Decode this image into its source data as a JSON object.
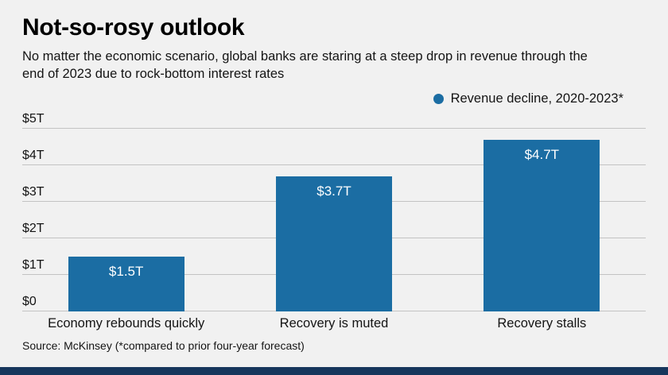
{
  "header": {
    "title": "Not-so-rosy outlook",
    "subtitle": "No matter the economic scenario, global banks are staring at a steep drop in revenue through the end of 2023 due to rock-bottom interest rates"
  },
  "chart_data": {
    "type": "bar",
    "title": "Not-so-rosy outlook",
    "legend": "Revenue decline, 2020-2023*",
    "legend_position": "top-right",
    "categories": [
      "Economy rebounds quickly",
      "Recovery is muted",
      "Recovery stalls"
    ],
    "values": [
      1.5,
      3.7,
      4.7
    ],
    "value_labels": [
      "$1.5T",
      "$3.7T",
      "$4.7T"
    ],
    "ylim": [
      0,
      5
    ],
    "yticks": [
      "$0",
      "$1T",
      "$2T",
      "$3T",
      "$4T",
      "$5T"
    ],
    "grid": true,
    "bar_color": "#1b6da3"
  },
  "footer": {
    "source": "Source: McKinsey (*compared to prior four-year forecast)"
  },
  "colors": {
    "background": "#f1f1f1",
    "accent": "#1b6da3",
    "gridline": "#c3c3c3",
    "bottom_strip": "#16365c"
  }
}
